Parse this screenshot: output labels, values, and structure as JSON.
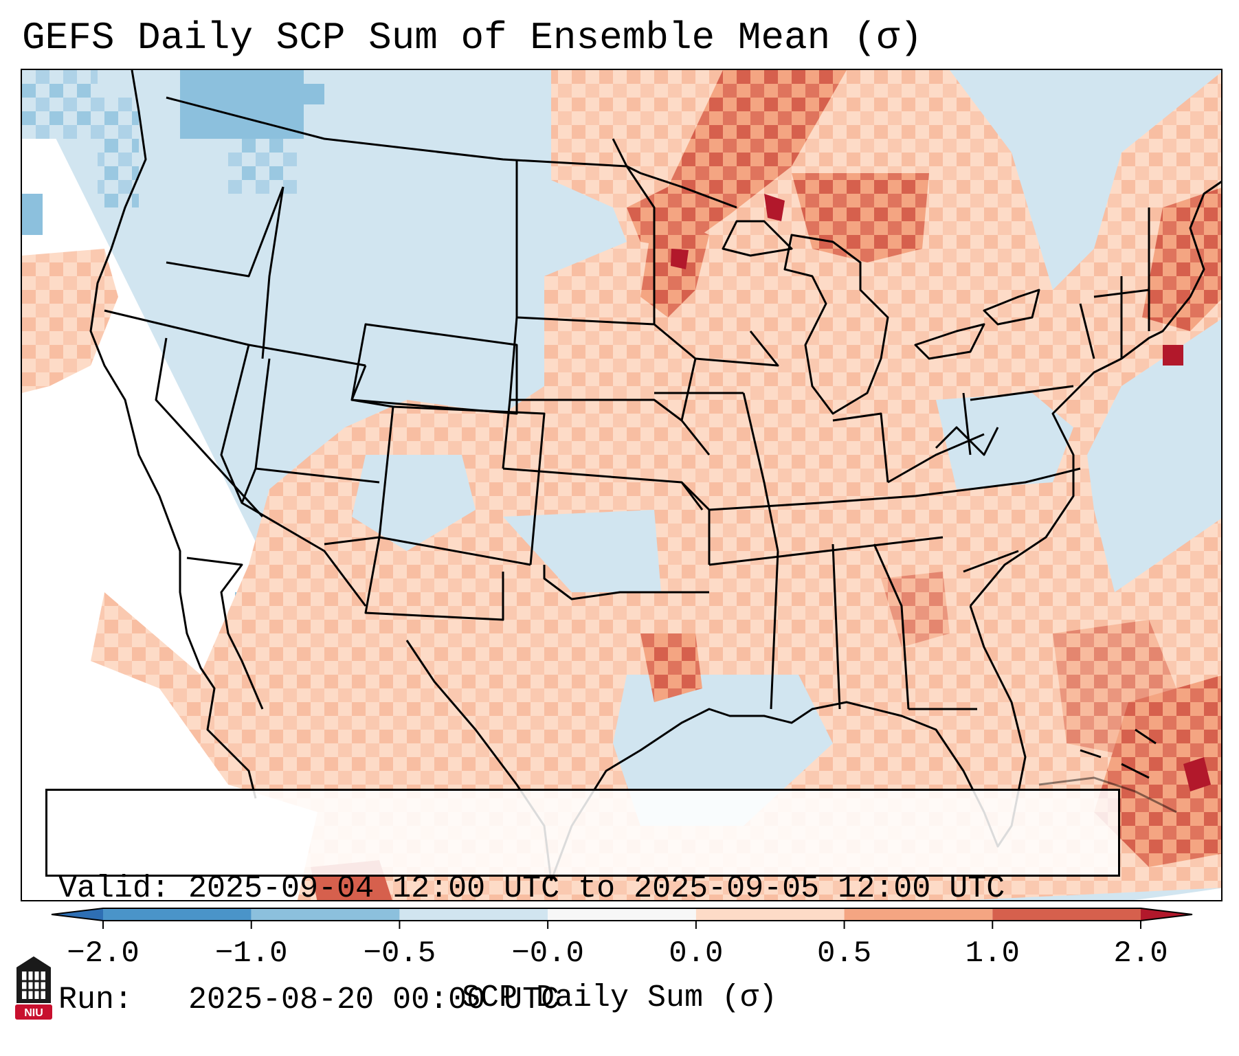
{
  "title": "GEFS Daily SCP Sum of Ensemble Mean (σ)",
  "info": {
    "valid": "Valid: 2025-09-04 12:00 UTC to 2025-09-05 12:00 UTC",
    "run": "Run:   2025-08-20 00:00 UTC"
  },
  "colorbar": {
    "label": "SCP Daily Sum (σ)",
    "ticks": [
      "−2.0",
      "−1.0",
      "−0.5",
      "−0.0",
      "0.0",
      "0.5",
      "1.0",
      "2.0"
    ],
    "colors": {
      "lt_neg2": "#2e6fb4",
      "neg2_to_neg1": "#4a94c9",
      "neg1_to_neg05": "#8cc0dd",
      "neg05_to_0": "#d1e5f0",
      "zero_band": "#f7f7f7",
      "pos0_to_05": "#fddbc7",
      "pos05_to_1": "#f4a582",
      "pos1_to_2": "#d6604d",
      "gt_2": "#b2182b"
    }
  },
  "logo": {
    "text": "NIU"
  }
}
